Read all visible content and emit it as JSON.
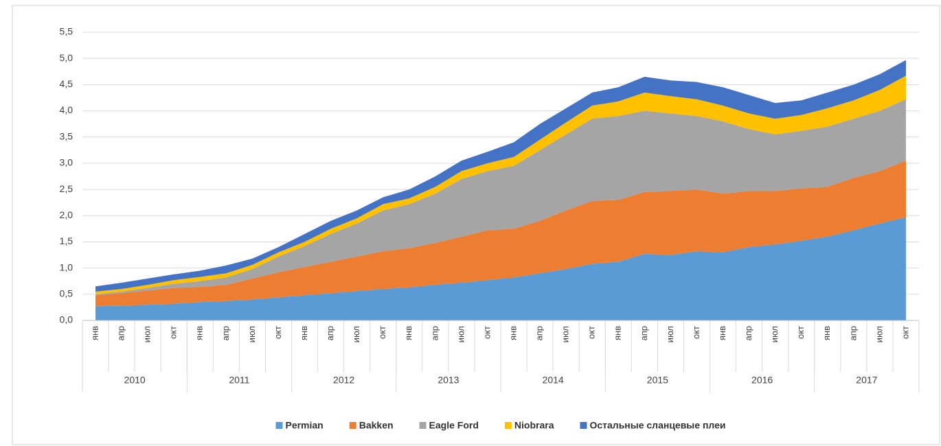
{
  "chart_data": {
    "type": "stacked_area",
    "categories": [
      "янв",
      "апр",
      "июл",
      "окт",
      "янв",
      "апр",
      "июл",
      "окт",
      "янв",
      "апр",
      "июл",
      "окт",
      "янв",
      "апр",
      "июл",
      "окт",
      "янв",
      "апр",
      "июл",
      "окт",
      "янв",
      "апр",
      "июл",
      "окт",
      "янв",
      "апр",
      "июл",
      "окт",
      "янв",
      "апр",
      "июл",
      "окт"
    ],
    "years": [
      "2010",
      "2011",
      "2012",
      "2013",
      "2014",
      "2015",
      "2016",
      "2017"
    ],
    "series": [
      {
        "name": "Permian",
        "color": "#5b9bd5",
        "values": [
          0.27,
          0.28,
          0.3,
          0.32,
          0.35,
          0.37,
          0.4,
          0.44,
          0.48,
          0.52,
          0.56,
          0.6,
          0.63,
          0.68,
          0.72,
          0.77,
          0.82,
          0.9,
          0.98,
          1.08,
          1.12,
          1.27,
          1.25,
          1.32,
          1.3,
          1.4,
          1.45,
          1.52,
          1.6,
          1.72,
          1.85,
          1.97
        ]
      },
      {
        "name": "Bakken",
        "color": "#ed7d31",
        "values": [
          0.21,
          0.24,
          0.27,
          0.3,
          0.29,
          0.31,
          0.4,
          0.48,
          0.54,
          0.6,
          0.66,
          0.72,
          0.75,
          0.8,
          0.88,
          0.95,
          0.93,
          1.0,
          1.12,
          1.2,
          1.18,
          1.18,
          1.22,
          1.18,
          1.12,
          1.07,
          1.02,
          1.0,
          0.95,
          1.0,
          1.0,
          1.08
        ]
      },
      {
        "name": "Eagle Ford",
        "color": "#a5a5a5",
        "values": [
          0.02,
          0.03,
          0.05,
          0.08,
          0.11,
          0.14,
          0.18,
          0.3,
          0.4,
          0.53,
          0.63,
          0.78,
          0.84,
          0.94,
          1.1,
          1.13,
          1.2,
          1.35,
          1.45,
          1.57,
          1.6,
          1.55,
          1.48,
          1.4,
          1.38,
          1.18,
          1.08,
          1.1,
          1.15,
          1.13,
          1.15,
          1.17
        ]
      },
      {
        "name": "Niobrara",
        "color": "#ffc000",
        "values": [
          0.05,
          0.05,
          0.06,
          0.07,
          0.08,
          0.08,
          0.08,
          0.08,
          0.08,
          0.1,
          0.1,
          0.12,
          0.11,
          0.13,
          0.15,
          0.15,
          0.17,
          0.2,
          0.23,
          0.25,
          0.28,
          0.35,
          0.33,
          0.32,
          0.3,
          0.3,
          0.3,
          0.3,
          0.35,
          0.35,
          0.4,
          0.45
        ]
      },
      {
        "name": "Остальные сланцевые плеи",
        "color": "#4472c4",
        "values": [
          0.1,
          0.12,
          0.12,
          0.11,
          0.12,
          0.15,
          0.12,
          0.1,
          0.15,
          0.15,
          0.15,
          0.13,
          0.17,
          0.2,
          0.2,
          0.22,
          0.28,
          0.3,
          0.27,
          0.25,
          0.27,
          0.3,
          0.3,
          0.33,
          0.35,
          0.35,
          0.3,
          0.28,
          0.3,
          0.3,
          0.3,
          0.3
        ]
      }
    ],
    "ylim": [
      0,
      5.5
    ],
    "yticks": [
      {
        "value": 0,
        "label": "0,0"
      },
      {
        "value": 0.5,
        "label": "0,5"
      },
      {
        "value": 1,
        "label": "1,0"
      },
      {
        "value": 1.5,
        "label": "1,5"
      },
      {
        "value": 2,
        "label": "2,0"
      },
      {
        "value": 2.5,
        "label": "2,5"
      },
      {
        "value": 3,
        "label": "3,0"
      },
      {
        "value": 3.5,
        "label": "3,5"
      },
      {
        "value": 4,
        "label": "4,0"
      },
      {
        "value": 4.5,
        "label": "4,5"
      },
      {
        "value": 5,
        "label": "5,0"
      },
      {
        "value": 5.5,
        "label": "5,5"
      }
    ],
    "grid": true,
    "legend": "bottom"
  }
}
